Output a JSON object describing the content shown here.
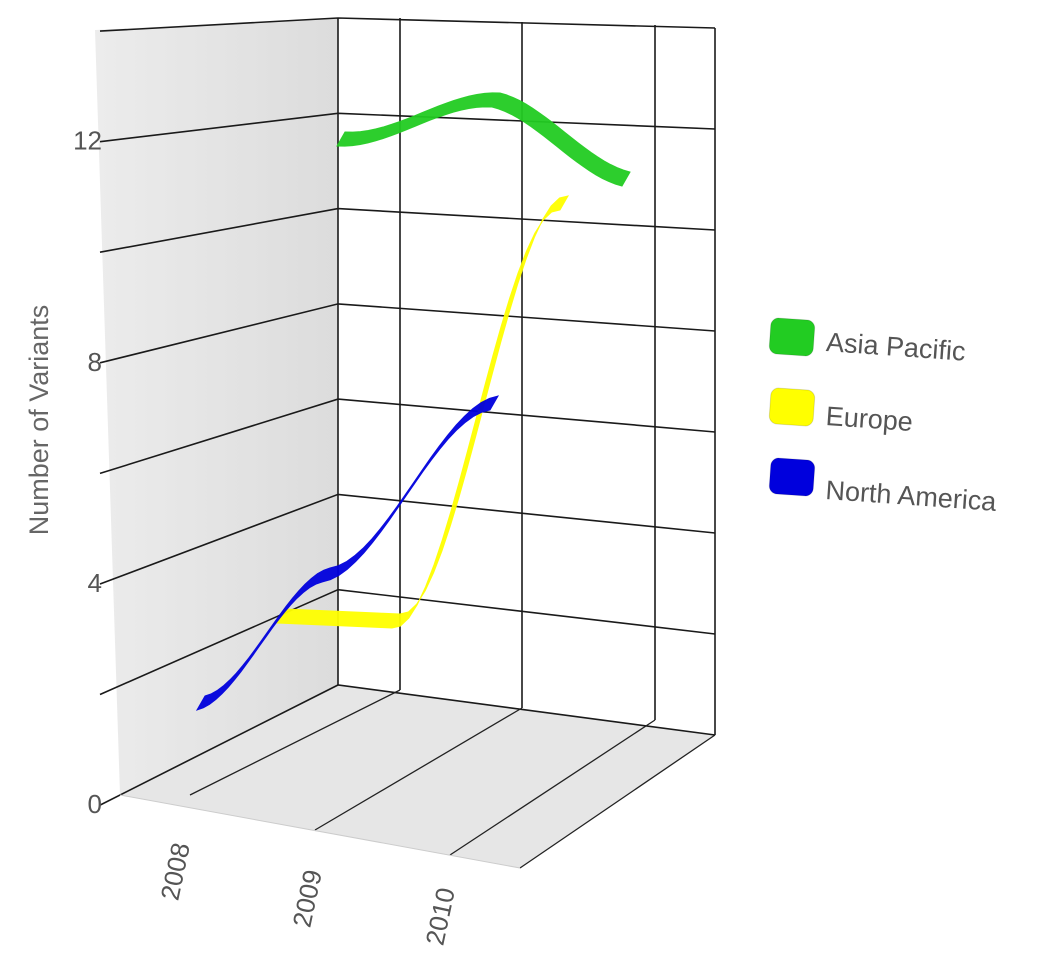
{
  "chart_data": {
    "type": "area",
    "title": "",
    "xlabel": "",
    "ylabel": "Number of Variants",
    "x": [
      "2008",
      "2009",
      "2010"
    ],
    "y_ticks": [
      "0",
      "4",
      "8",
      "12"
    ],
    "ylim": [
      0,
      14
    ],
    "grid": true,
    "legend_position": "right",
    "series": [
      {
        "name": "Asia Pacific",
        "values": [
          12,
          13,
          12
        ],
        "color": "#22cc22"
      },
      {
        "name": "Europe",
        "values": [
          2,
          2,
          11
        ],
        "color": "#ffff00"
      },
      {
        "name": "North America",
        "values": [
          1,
          3,
          6
        ],
        "color": "#0000dd"
      }
    ]
  }
}
